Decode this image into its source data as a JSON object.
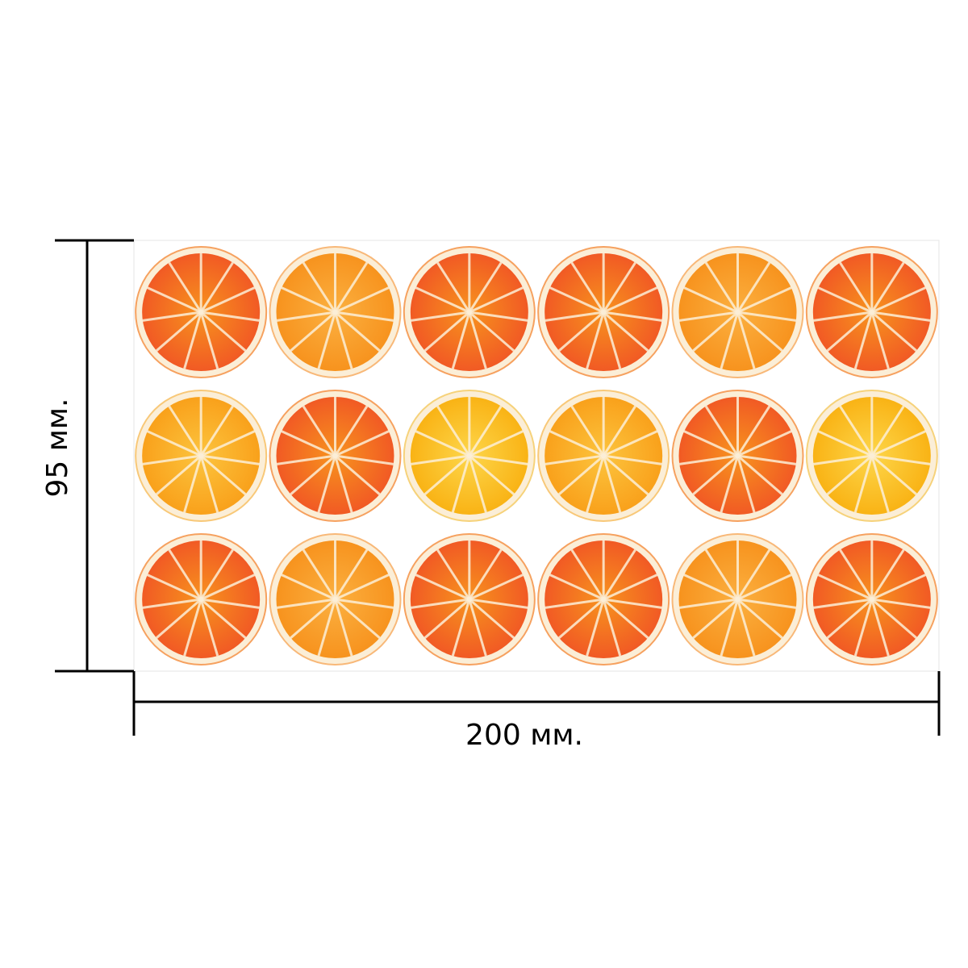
{
  "dimensions": {
    "width_label": "200 мм.",
    "height_label": "95 мм."
  },
  "tile": {
    "rows": 3,
    "columns": 6,
    "slice_colors": [
      [
        "red-orange",
        "orange",
        "red-orange",
        "red-orange",
        "orange",
        "red-orange"
      ],
      [
        "yellow-orange",
        "red-orange",
        "yellow",
        "yellow-orange",
        "red-orange",
        "yellow"
      ],
      [
        "red-orange",
        "orange",
        "red-orange",
        "red-orange",
        "orange",
        "red-orange"
      ]
    ]
  },
  "palette": {
    "red-orange": {
      "outer": "#f15a24",
      "inner": "#f7931e",
      "rind": "#f6a15f"
    },
    "orange": {
      "outer": "#f7931e",
      "inner": "#fbb040",
      "rind": "#f8b878"
    },
    "yellow-orange": {
      "outer": "#f9a11b",
      "inner": "#fcc43e",
      "rind": "#f8c878"
    },
    "yellow": {
      "outer": "#f9b315",
      "inner": "#fdd64a",
      "rind": "#f6d27a"
    },
    "pith": "#fbeed7",
    "line": "#000000"
  }
}
